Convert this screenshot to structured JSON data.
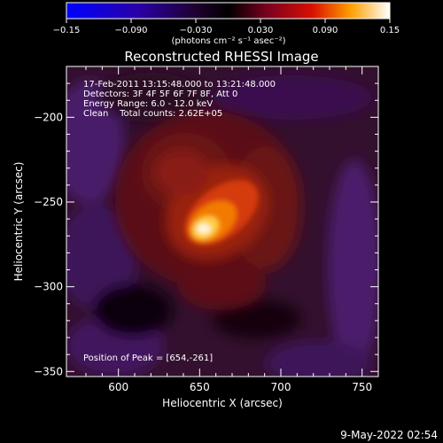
{
  "colorbar": {
    "ticks": [
      "-0.15",
      "-0.090",
      "-0.030",
      "0.030",
      "0.090",
      "0.15"
    ],
    "units": "(photons cm⁻² s⁻¹ asec⁻²)"
  },
  "chart_data": {
    "type": "heatmap",
    "title": "Reconstructed RHESSI Image",
    "xlabel": "Heliocentric X (arcsec)",
    "ylabel": "Heliocentric Y (arcsec)",
    "xlim": [
      568,
      760
    ],
    "ylim": [
      -353,
      -170
    ],
    "xticks": [
      600,
      650,
      700,
      750
    ],
    "yticks": [
      -200,
      -250,
      -300,
      -350
    ],
    "zlim": [
      -0.15,
      0.15
    ],
    "colormap": "black-purple-red-yellow-white",
    "peak": [
      654,
      -261
    ],
    "annotations": [
      "17-Feb-2011 13:15:48.000 to 13:21:48.000",
      "Detectors: 3F 4F 5F 6F 7F 8F, Att 0",
      "Energy Range: 6.0 - 12.0 keV",
      "Clean    Total counts: 2.62E+05"
    ],
    "peak_label": "Position of Peak = [654,-261]"
  },
  "date_label": "9-May-2022 02:54"
}
